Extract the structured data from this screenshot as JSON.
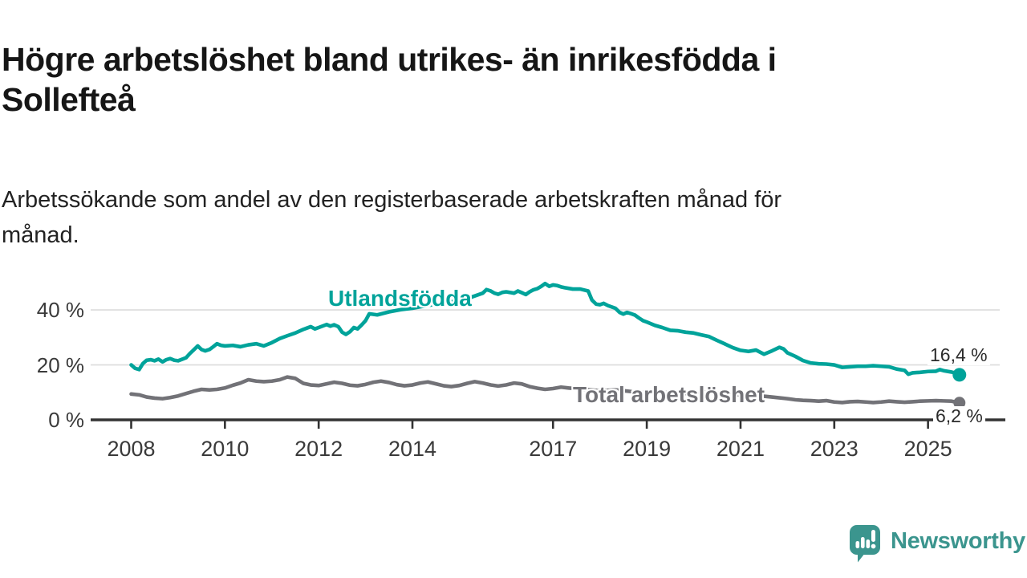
{
  "title_lines": [
    "Högre arbetslöshet bland utrikes- än inrikesfödda i",
    "Sollefteå"
  ],
  "subtitle_lines": [
    "Arbetssökande som andel av den registerbaserade arbetskraften månad för",
    "månad."
  ],
  "colors": {
    "foreign_born_line": "#00a39a",
    "total_line": "#727277",
    "axis": "#333333",
    "gridline": "#dcdcdc",
    "tick_label": "#3a3a3a",
    "value_label": "#2b2b2b",
    "title": "#161616",
    "logo_teal": "#3b958e",
    "background": "#ffffff"
  },
  "branding": {
    "logo_icon": "speech-bubble-bar-chart-icon",
    "logo_text": "Newsworthy"
  },
  "chart_data": {
    "type": "line",
    "title": "Högre arbetslöshet bland utrikes- än inrikesfödda i Sollefteå",
    "subtitle": "Arbetssökande som andel av den registerbaserade arbetskraften månad för månad.",
    "unit": "percent of registered labour force",
    "grid": "horizontal-only",
    "legend_position": "inline-labels-on-lines",
    "xlim": [
      2007.55,
      2025.9
    ],
    "ylim": [
      0,
      52
    ],
    "y_ticks": [
      {
        "value": 40,
        "label": "40 %"
      },
      {
        "value": 20,
        "label": "20 %"
      },
      {
        "value": 0,
        "label": "0 %"
      }
    ],
    "x_ticks": [
      {
        "value": 2008,
        "label": "2008"
      },
      {
        "value": 2010,
        "label": "2010"
      },
      {
        "value": 2012,
        "label": "2012"
      },
      {
        "value": 2014,
        "label": "2014"
      },
      {
        "value": 2017,
        "label": "2017"
      },
      {
        "value": 2019,
        "label": "2019"
      },
      {
        "value": 2021,
        "label": "2021"
      },
      {
        "value": 2023,
        "label": "2023"
      },
      {
        "value": 2025,
        "label": "2025"
      }
    ],
    "series": [
      {
        "name": "Utlandsfödda",
        "color": "#00a39a",
        "end_value": 16.4,
        "end_label": "16,4 %",
        "points": [
          [
            2008.0,
            20.0
          ],
          [
            2008.08,
            18.8
          ],
          [
            2008.17,
            18.3
          ],
          [
            2008.25,
            20.5
          ],
          [
            2008.33,
            21.7
          ],
          [
            2008.42,
            21.9
          ],
          [
            2008.5,
            21.5
          ],
          [
            2008.58,
            22.1
          ],
          [
            2008.67,
            21.1
          ],
          [
            2008.75,
            21.9
          ],
          [
            2008.83,
            22.3
          ],
          [
            2008.92,
            21.7
          ],
          [
            2009.0,
            21.5
          ],
          [
            2009.08,
            22.0
          ],
          [
            2009.17,
            22.6
          ],
          [
            2009.25,
            24.1
          ],
          [
            2009.33,
            25.4
          ],
          [
            2009.42,
            26.9
          ],
          [
            2009.5,
            25.6
          ],
          [
            2009.58,
            25.1
          ],
          [
            2009.67,
            25.6
          ],
          [
            2009.75,
            26.6
          ],
          [
            2009.83,
            27.7
          ],
          [
            2009.92,
            27.1
          ],
          [
            2010.0,
            26.9
          ],
          [
            2010.17,
            27.1
          ],
          [
            2010.33,
            26.6
          ],
          [
            2010.5,
            27.3
          ],
          [
            2010.67,
            27.7
          ],
          [
            2010.83,
            26.9
          ],
          [
            2011.0,
            28.1
          ],
          [
            2011.17,
            29.6
          ],
          [
            2011.33,
            30.6
          ],
          [
            2011.5,
            31.6
          ],
          [
            2011.67,
            32.9
          ],
          [
            2011.83,
            33.9
          ],
          [
            2011.92,
            33.1
          ],
          [
            2012.0,
            33.6
          ],
          [
            2012.17,
            34.7
          ],
          [
            2012.25,
            34.1
          ],
          [
            2012.33,
            34.6
          ],
          [
            2012.42,
            33.9
          ],
          [
            2012.5,
            31.9
          ],
          [
            2012.58,
            31.1
          ],
          [
            2012.67,
            32.1
          ],
          [
            2012.75,
            33.6
          ],
          [
            2012.83,
            33.1
          ],
          [
            2012.92,
            34.6
          ],
          [
            2013.0,
            36.1
          ],
          [
            2013.08,
            38.6
          ],
          [
            2013.25,
            38.2
          ],
          [
            2013.5,
            39.3
          ],
          [
            2013.75,
            40.1
          ],
          [
            2014.0,
            40.6
          ],
          [
            2014.25,
            41.4
          ],
          [
            2014.5,
            42.1
          ],
          [
            2014.75,
            42.6
          ],
          [
            2015.0,
            43.6
          ],
          [
            2015.25,
            44.6
          ],
          [
            2015.5,
            46.1
          ],
          [
            2015.58,
            47.4
          ],
          [
            2015.67,
            46.9
          ],
          [
            2015.75,
            46.1
          ],
          [
            2015.83,
            45.7
          ],
          [
            2015.92,
            46.4
          ],
          [
            2016.0,
            46.6
          ],
          [
            2016.17,
            46.1
          ],
          [
            2016.25,
            46.9
          ],
          [
            2016.33,
            46.3
          ],
          [
            2016.42,
            45.6
          ],
          [
            2016.5,
            46.6
          ],
          [
            2016.58,
            47.3
          ],
          [
            2016.67,
            47.8
          ],
          [
            2016.75,
            48.6
          ],
          [
            2016.83,
            49.6
          ],
          [
            2016.92,
            48.6
          ],
          [
            2017.0,
            49.1
          ],
          [
            2017.08,
            48.9
          ],
          [
            2017.17,
            48.4
          ],
          [
            2017.25,
            48.1
          ],
          [
            2017.42,
            47.6
          ],
          [
            2017.58,
            47.6
          ],
          [
            2017.75,
            46.9
          ],
          [
            2017.83,
            43.6
          ],
          [
            2017.92,
            42.1
          ],
          [
            2018.0,
            41.9
          ],
          [
            2018.08,
            42.4
          ],
          [
            2018.17,
            41.6
          ],
          [
            2018.33,
            40.6
          ],
          [
            2018.42,
            39.1
          ],
          [
            2018.5,
            38.5
          ],
          [
            2018.58,
            39.1
          ],
          [
            2018.67,
            38.6
          ],
          [
            2018.75,
            38.1
          ],
          [
            2018.83,
            37.1
          ],
          [
            2018.92,
            36.1
          ],
          [
            2019.0,
            35.6
          ],
          [
            2019.17,
            34.4
          ],
          [
            2019.33,
            33.6
          ],
          [
            2019.5,
            32.6
          ],
          [
            2019.67,
            32.4
          ],
          [
            2019.83,
            31.9
          ],
          [
            2020.0,
            31.6
          ],
          [
            2020.17,
            30.9
          ],
          [
            2020.33,
            30.3
          ],
          [
            2020.5,
            28.9
          ],
          [
            2020.67,
            27.6
          ],
          [
            2020.83,
            26.3
          ],
          [
            2021.0,
            25.3
          ],
          [
            2021.17,
            24.9
          ],
          [
            2021.33,
            25.4
          ],
          [
            2021.5,
            23.9
          ],
          [
            2021.67,
            25.1
          ],
          [
            2021.83,
            26.4
          ],
          [
            2021.92,
            25.8
          ],
          [
            2022.0,
            24.4
          ],
          [
            2022.17,
            23.1
          ],
          [
            2022.33,
            21.6
          ],
          [
            2022.5,
            20.7
          ],
          [
            2022.67,
            20.4
          ],
          [
            2022.83,
            20.3
          ],
          [
            2023.0,
            20.0
          ],
          [
            2023.17,
            19.1
          ],
          [
            2023.33,
            19.3
          ],
          [
            2023.5,
            19.5
          ],
          [
            2023.67,
            19.5
          ],
          [
            2023.83,
            19.7
          ],
          [
            2024.0,
            19.5
          ],
          [
            2024.17,
            19.3
          ],
          [
            2024.33,
            18.5
          ],
          [
            2024.5,
            18.0
          ],
          [
            2024.58,
            16.6
          ],
          [
            2024.67,
            17.1
          ],
          [
            2024.83,
            17.3
          ],
          [
            2025.0,
            17.6
          ],
          [
            2025.17,
            17.7
          ],
          [
            2025.25,
            18.3
          ],
          [
            2025.33,
            17.9
          ],
          [
            2025.5,
            17.4
          ],
          [
            2025.58,
            17.1
          ],
          [
            2025.67,
            16.4
          ]
        ]
      },
      {
        "name": "Total arbetslöshet",
        "color": "#727277",
        "end_value": 6.2,
        "end_label": "6,2 %",
        "points": [
          [
            2008.0,
            9.4
          ],
          [
            2008.17,
            9.1
          ],
          [
            2008.33,
            8.3
          ],
          [
            2008.5,
            7.9
          ],
          [
            2008.67,
            7.7
          ],
          [
            2008.83,
            8.1
          ],
          [
            2009.0,
            8.7
          ],
          [
            2009.17,
            9.6
          ],
          [
            2009.33,
            10.4
          ],
          [
            2009.5,
            11.1
          ],
          [
            2009.67,
            10.9
          ],
          [
            2009.83,
            11.1
          ],
          [
            2010.0,
            11.6
          ],
          [
            2010.17,
            12.6
          ],
          [
            2010.33,
            13.4
          ],
          [
            2010.5,
            14.6
          ],
          [
            2010.67,
            14.1
          ],
          [
            2010.83,
            13.9
          ],
          [
            2011.0,
            14.1
          ],
          [
            2011.17,
            14.6
          ],
          [
            2011.33,
            15.6
          ],
          [
            2011.5,
            15.1
          ],
          [
            2011.67,
            13.3
          ],
          [
            2011.83,
            12.7
          ],
          [
            2012.0,
            12.5
          ],
          [
            2012.17,
            13.1
          ],
          [
            2012.33,
            13.7
          ],
          [
            2012.5,
            13.3
          ],
          [
            2012.67,
            12.6
          ],
          [
            2012.83,
            12.4
          ],
          [
            2013.0,
            12.9
          ],
          [
            2013.17,
            13.7
          ],
          [
            2013.33,
            14.1
          ],
          [
            2013.5,
            13.6
          ],
          [
            2013.67,
            12.8
          ],
          [
            2013.83,
            12.4
          ],
          [
            2014.0,
            12.7
          ],
          [
            2014.17,
            13.4
          ],
          [
            2014.33,
            13.8
          ],
          [
            2014.5,
            13.1
          ],
          [
            2014.67,
            12.4
          ],
          [
            2014.83,
            12.1
          ],
          [
            2015.0,
            12.5
          ],
          [
            2015.17,
            13.3
          ],
          [
            2015.33,
            13.9
          ],
          [
            2015.5,
            13.4
          ],
          [
            2015.67,
            12.7
          ],
          [
            2015.83,
            12.3
          ],
          [
            2016.0,
            12.7
          ],
          [
            2016.17,
            13.4
          ],
          [
            2016.33,
            13.1
          ],
          [
            2016.5,
            12.1
          ],
          [
            2016.67,
            11.5
          ],
          [
            2016.83,
            11.1
          ],
          [
            2017.0,
            11.4
          ],
          [
            2017.17,
            11.9
          ],
          [
            2017.33,
            11.6
          ],
          [
            2017.67,
            11.1
          ],
          [
            2018.0,
            10.6
          ],
          [
            2018.33,
            10.9
          ],
          [
            2018.67,
            10.3
          ],
          [
            2019.0,
            9.9
          ],
          [
            2019.33,
            10.1
          ],
          [
            2019.67,
            9.5
          ],
          [
            2020.0,
            9.7
          ],
          [
            2020.33,
            10.1
          ],
          [
            2020.67,
            9.6
          ],
          [
            2021.0,
            9.1
          ],
          [
            2021.33,
            8.9
          ],
          [
            2021.67,
            8.3
          ],
          [
            2022.0,
            7.7
          ],
          [
            2022.17,
            7.3
          ],
          [
            2022.33,
            7.1
          ],
          [
            2022.5,
            7.0
          ],
          [
            2022.67,
            6.8
          ],
          [
            2022.83,
            7.0
          ],
          [
            2023.0,
            6.5
          ],
          [
            2023.17,
            6.3
          ],
          [
            2023.33,
            6.6
          ],
          [
            2023.5,
            6.7
          ],
          [
            2023.67,
            6.5
          ],
          [
            2023.83,
            6.3
          ],
          [
            2024.0,
            6.5
          ],
          [
            2024.17,
            6.8
          ],
          [
            2024.33,
            6.6
          ],
          [
            2024.5,
            6.4
          ],
          [
            2024.67,
            6.6
          ],
          [
            2024.83,
            6.8
          ],
          [
            2025.0,
            6.9
          ],
          [
            2025.17,
            7.0
          ],
          [
            2025.33,
            6.9
          ],
          [
            2025.5,
            6.8
          ],
          [
            2025.67,
            6.2
          ]
        ]
      }
    ]
  }
}
